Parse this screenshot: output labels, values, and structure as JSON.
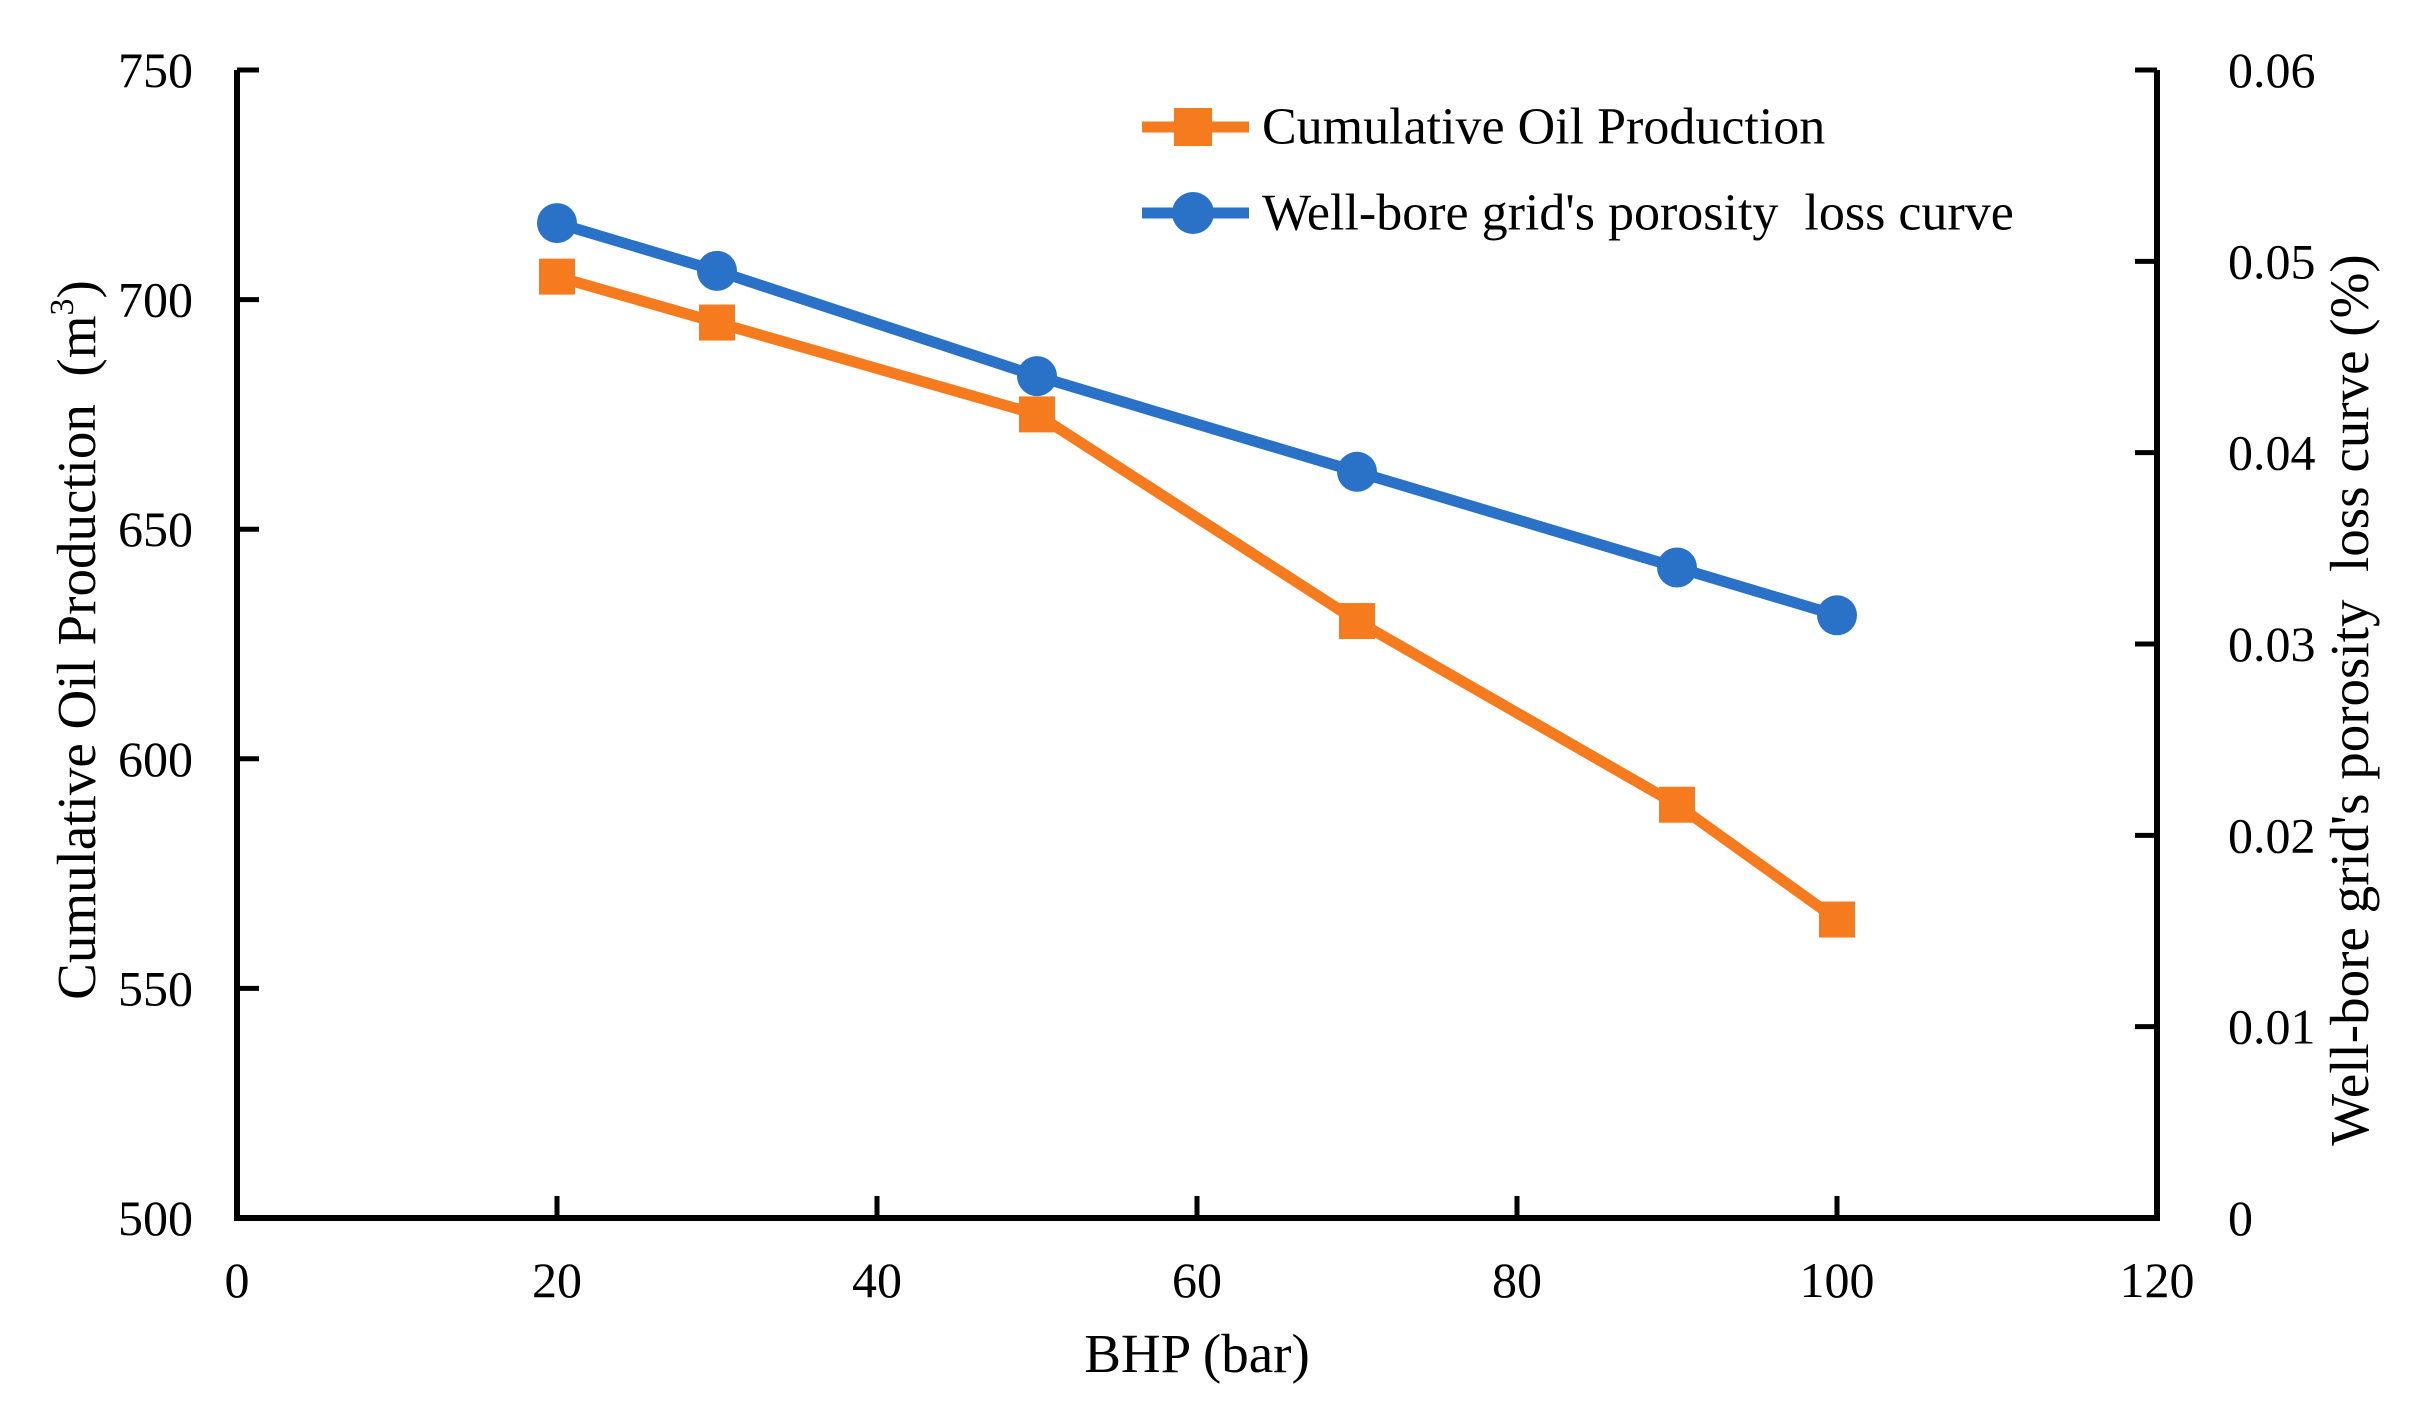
{
  "chart_data": {
    "type": "line",
    "title": "",
    "grid": false,
    "background": "#FFFFFF",
    "axis_color": "#000000",
    "x_axis": {
      "title": "BHP (bar)",
      "min": 0,
      "max": 120,
      "ticks": [
        {
          "v": 0,
          "label": "0"
        },
        {
          "v": 20,
          "label": "20"
        },
        {
          "v": 40,
          "label": "40"
        },
        {
          "v": 60,
          "label": "60"
        },
        {
          "v": 80,
          "label": "80"
        },
        {
          "v": 100,
          "label": "100"
        },
        {
          "v": 120,
          "label": "120"
        }
      ]
    },
    "y_left_axis": {
      "title_main": "Cumulative Oil Production  (m",
      "title_sup": "3",
      "title_close": ")",
      "min": 500,
      "max": 750,
      "ticks": [
        {
          "v": 750,
          "label": "750"
        },
        {
          "v": 700,
          "label": "700"
        },
        {
          "v": 650,
          "label": "650"
        },
        {
          "v": 600,
          "label": "600"
        },
        {
          "v": 550,
          "label": "550"
        },
        {
          "v": 500,
          "label": "500"
        }
      ]
    },
    "y_right_axis": {
      "title": "Well-bore grid's porosity  loss curve (%)",
      "min": 0,
      "max": 0.06,
      "ticks": [
        {
          "v": 0.06,
          "label": "0.06"
        },
        {
          "v": 0.05,
          "label": "0.05"
        },
        {
          "v": 0.04,
          "label": "0.04"
        },
        {
          "v": 0.03,
          "label": "0.03"
        },
        {
          "v": 0.02,
          "label": "0.02"
        },
        {
          "v": 0.01,
          "label": "0.01"
        },
        {
          "v": 0,
          "label": "0"
        }
      ]
    },
    "series": [
      {
        "name": "Cumulative Oil Production",
        "axis": "left",
        "marker": "square",
        "color": "#F67B1E",
        "x": [
          20,
          30,
          50,
          70,
          90,
          100
        ],
        "values": [
          705,
          695,
          675,
          630,
          590,
          565
        ]
      },
      {
        "name": "Well-bore grid's porosity  loss curve",
        "axis": "right",
        "marker": "circle",
        "color": "#2A72C8",
        "x": [
          20,
          30,
          50,
          70,
          90,
          100
        ],
        "values": [
          0.052,
          0.0495,
          0.044,
          0.039,
          0.034,
          0.0315
        ]
      }
    ],
    "legend": {
      "position": "top-inside",
      "items": [
        "Cumulative Oil Production",
        "Well-bore grid's porosity  loss curve"
      ]
    }
  }
}
